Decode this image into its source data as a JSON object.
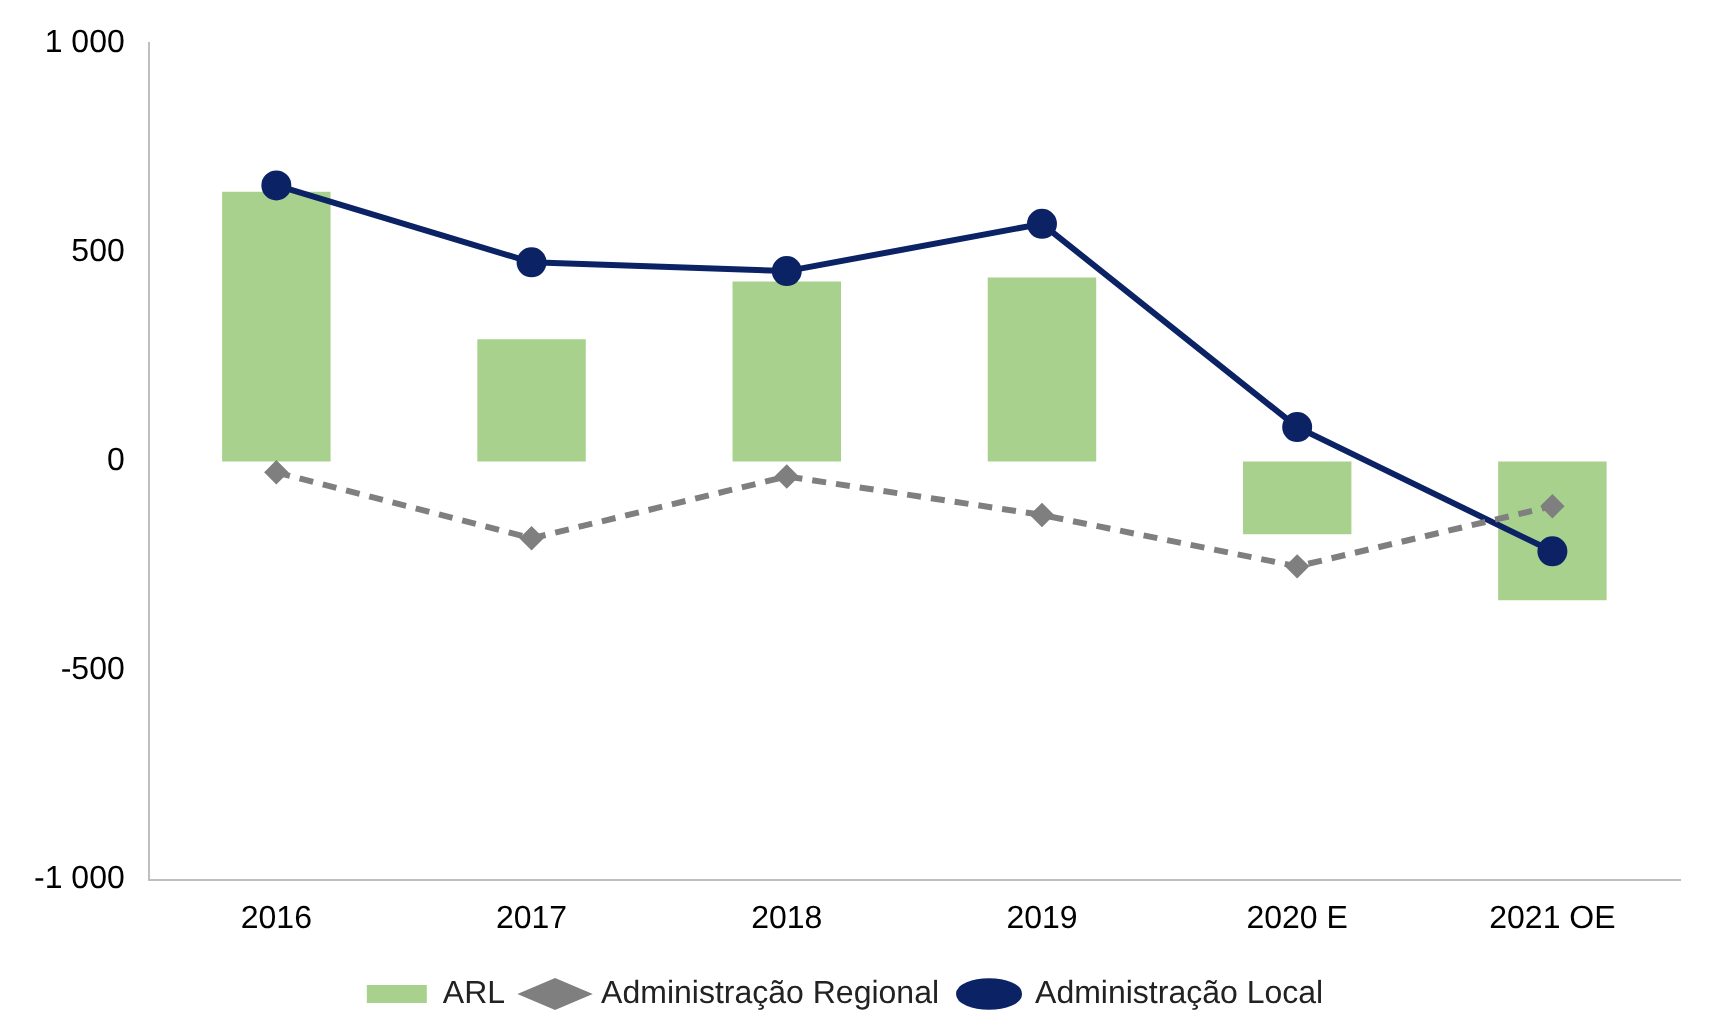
{
  "chart_data": {
    "type": "bar",
    "categories": [
      "2016",
      "2017",
      "2018",
      "2019",
      "2020 E",
      "2021 OE"
    ],
    "series": [
      {
        "name": "ARL",
        "color": "#a9d18e",
        "values": [
          645,
          292,
          430,
          440,
          -174,
          -332
        ]
      },
      {
        "name": "Administração Regional",
        "type": "line",
        "color": "#7f7f7f",
        "marker": "diamond",
        "line_style": "dashed",
        "values": [
          -26,
          -184,
          -36,
          -128,
          -251,
          -107
        ]
      },
      {
        "name": "Administração Local",
        "type": "line",
        "color": "#0b2265",
        "marker": "circle",
        "line_style": "solid",
        "values": [
          660,
          476,
          455,
          568,
          82,
          -215
        ]
      }
    ],
    "ylim": [
      -1000,
      1000
    ],
    "yticks": [
      {
        "value": -1000,
        "label": "-1 000"
      },
      -500,
      0,
      500,
      {
        "value": 1000,
        "label": "1 000"
      }
    ],
    "grid": false,
    "legend": "bottom"
  }
}
